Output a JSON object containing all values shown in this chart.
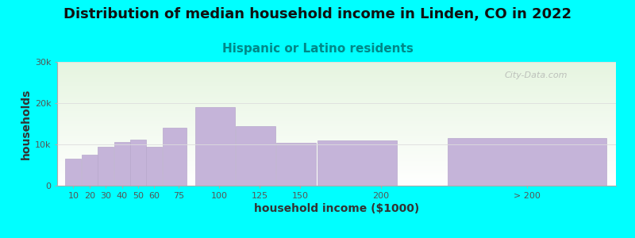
{
  "title": "Distribution of median household income in Linden, CO in 2022",
  "subtitle": "Hispanic or Latino residents",
  "xlabel": "household income ($1000)",
  "ylabel": "households",
  "background_color": "#00FFFF",
  "plot_bg_top": "#e6f5e0",
  "plot_bg_bottom": "#ffffff",
  "bar_color": "#c5b4d9",
  "bar_edge_color": "#b8a8cc",
  "values": [
    6500,
    7500,
    9500,
    10500,
    11200,
    9500,
    14000,
    19000,
    14500,
    10300,
    11000,
    11500
  ],
  "bar_widths": [
    10,
    10,
    10,
    10,
    10,
    10,
    15,
    25,
    25,
    25,
    50,
    100
  ],
  "bar_lefts": [
    5,
    15,
    25,
    35,
    45,
    55,
    65,
    85,
    110,
    135,
    160,
    240
  ],
  "xlim": [
    0,
    345
  ],
  "ylim": [
    0,
    30000
  ],
  "yticks": [
    0,
    10000,
    20000,
    30000
  ],
  "ytick_labels": [
    "0",
    "10k",
    "20k",
    "30k"
  ],
  "xtick_positions": [
    10,
    20,
    30,
    40,
    50,
    60,
    75,
    100,
    125,
    150,
    200,
    290
  ],
  "xtick_labels": [
    "10",
    "20",
    "30",
    "40",
    "50",
    "60",
    "75",
    "100",
    "125",
    "150",
    "200",
    "> 200"
  ],
  "title_fontsize": 13,
  "subtitle_fontsize": 11,
  "axis_label_fontsize": 10,
  "tick_fontsize": 8,
  "subtitle_color": "#008888",
  "title_color": "#111111",
  "watermark_text": "City-Data.com"
}
